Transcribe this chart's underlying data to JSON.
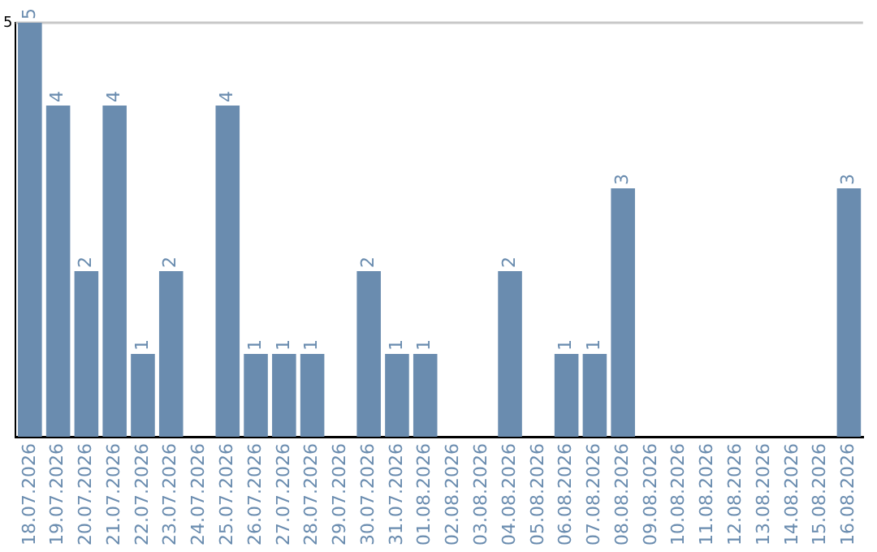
{
  "chart_data": {
    "type": "bar",
    "categories": [
      "18.07.2026",
      "19.07.2026",
      "20.07.2026",
      "21.07.2026",
      "22.07.2026",
      "23.07.2026",
      "24.07.2026",
      "25.07.2026",
      "26.07.2026",
      "27.07.2026",
      "28.07.2026",
      "29.07.2026",
      "30.07.2026",
      "31.07.2026",
      "01.08.2026",
      "02.08.2026",
      "03.08.2026",
      "04.08.2026",
      "05.08.2026",
      "06.08.2026",
      "07.08.2026",
      "08.08.2026",
      "09.08.2026",
      "10.08.2026",
      "11.08.2026",
      "12.08.2026",
      "13.08.2026",
      "14.08.2026",
      "15.08.2026",
      "16.08.2026"
    ],
    "values": [
      5,
      4,
      2,
      4,
      1,
      2,
      0,
      4,
      1,
      1,
      1,
      0,
      2,
      1,
      1,
      0,
      0,
      2,
      0,
      1,
      1,
      3,
      0,
      0,
      0,
      0,
      0,
      0,
      0,
      3
    ],
    "value_labels": [
      "5",
      "4",
      "2",
      "4",
      "1",
      "2",
      null,
      "4",
      "1",
      "1",
      "1",
      null,
      "2",
      "1",
      "1",
      null,
      null,
      "2",
      null,
      "1",
      "1",
      "3",
      null,
      null,
      null,
      null,
      null,
      null,
      null,
      "3"
    ],
    "color": "#6a8caf",
    "ylim": [
      0,
      5
    ],
    "yticks": [
      5
    ],
    "legend": false
  }
}
